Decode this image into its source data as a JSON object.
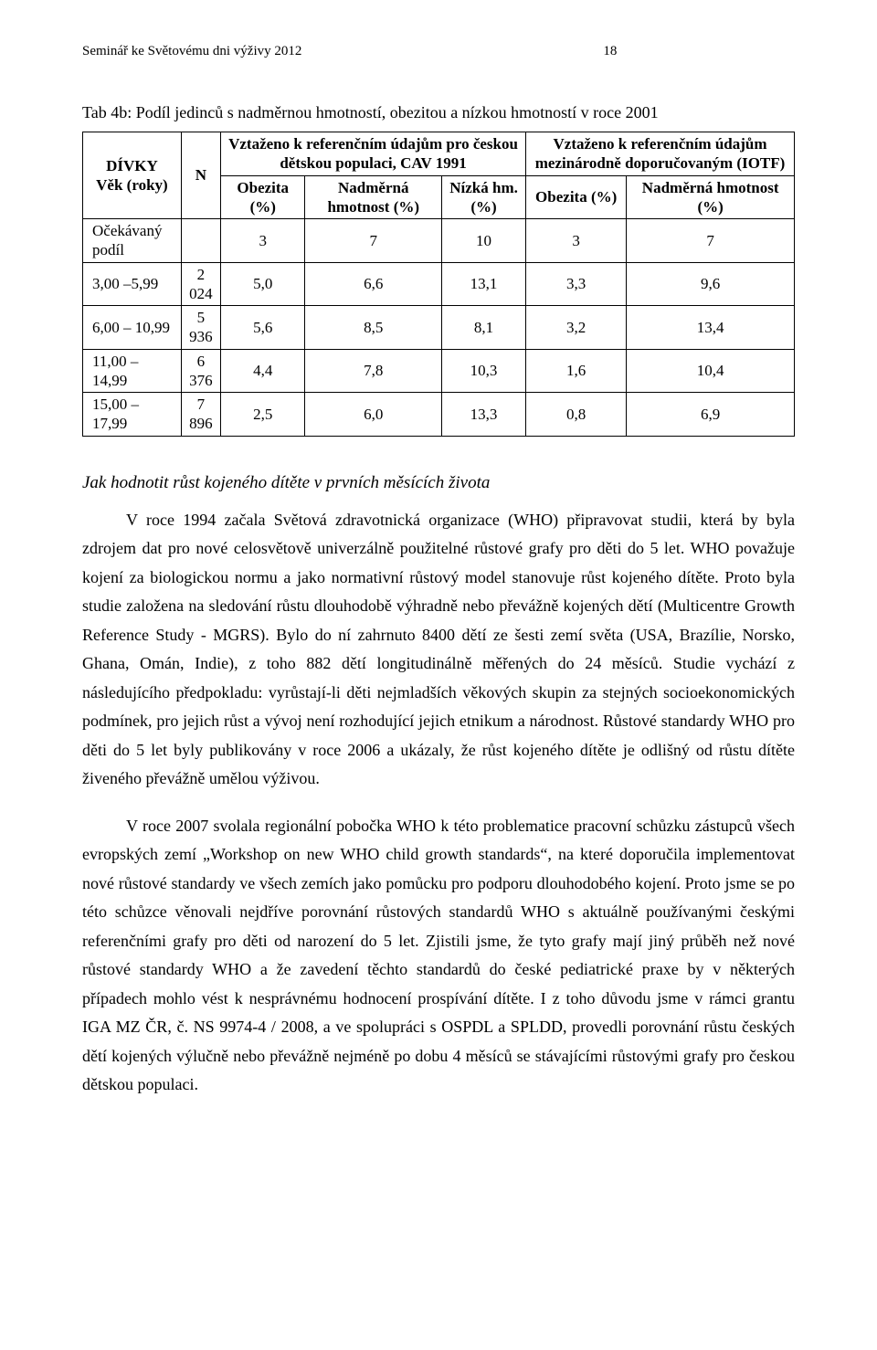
{
  "header": {
    "running_title": "Seminář ke Světovému dni výživy 2012",
    "page_number": "18"
  },
  "table": {
    "caption": "Tab 4b: Podíl jedinců s nadměrnou hmotností, obezitou a nízkou hmotností v roce 2001",
    "col0_label1": "DÍVKY",
    "col0_label2": "Věk (roky)",
    "col1_label": "N",
    "groupA_label": "Vztaženo k referenčním údajům pro českou dětskou populaci, CAV 1991",
    "groupB_label": "Vztaženo k referenčním údajům mezinárodně doporučovaným (IOTF)",
    "sub_obesity": "Obezita (%)",
    "sub_over": "Nadměrná hmotnost (%)",
    "sub_low": "Nízká hm. (%)",
    "rows": [
      {
        "label": "Očekávaný podíl",
        "n": "",
        "a1": "3",
        "a2": "7",
        "a3": "10",
        "b1": "3",
        "b2": "7"
      },
      {
        "label": "3,00 –5,99",
        "n": "2 024",
        "a1": "5,0",
        "a2": "6,6",
        "a3": "13,1",
        "b1": "3,3",
        "b2": "9,6"
      },
      {
        "label": "6,00 – 10,99",
        "n": "5 936",
        "a1": "5,6",
        "a2": "8,5",
        "a3": "8,1",
        "b1": "3,2",
        "b2": "13,4"
      },
      {
        "label": "11,00 – 14,99",
        "n": "6 376",
        "a1": "4,4",
        "a2": "7,8",
        "a3": "10,3",
        "b1": "1,6",
        "b2": "10,4"
      },
      {
        "label": "15,00 – 17,99",
        "n": "7 896",
        "a1": "2,5",
        "a2": "6,0",
        "a3": "13,3",
        "b1": "0,8",
        "b2": "6,9"
      }
    ]
  },
  "section": {
    "title": "Jak hodnotit růst kojeného dítěte v prvních měsících života",
    "para1": "V roce 1994 začala Světová zdravotnická organizace (WHO) připravovat studii, která by byla zdrojem dat pro nové celosvětově univerzálně použitelné růstové grafy pro děti do 5 let. WHO považuje kojení za biologickou normu a jako normativní růstový model stanovuje růst kojeného dítěte. Proto byla studie založena na sledování růstu dlouhodobě výhradně nebo převážně kojených dětí (Multicentre Growth Reference Study - MGRS). Bylo do ní zahrnuto 8400 dětí ze šesti zemí světa (USA, Brazílie, Norsko, Ghana, Omán, Indie), z toho 882 dětí longitudinálně měřených do 24 měsíců. Studie vychází z následujícího předpokladu: vyrůstají-li děti nejmladších věkových skupin za stejných socioekonomických podmínek, pro jejich růst a vývoj není rozhodující jejich etnikum a národnost. Růstové standardy WHO pro děti do 5 let byly publikovány v roce 2006 a ukázaly, že růst kojeného dítěte je odlišný od růstu dítěte živeného převážně umělou výživou.",
    "para2": "V roce 2007 svolala regionální pobočka WHO k této problematice pracovní schůzku zástupců všech evropských zemí „Workshop on new WHO child growth standards“, na které doporučila implementovat nové růstové standardy ve všech zemích jako pomůcku pro podporu dlouhodobého kojení. Proto jsme se po této schůzce věnovali nejdříve porovnání růstových standardů WHO s aktuálně používanými českými referenčními grafy pro děti od narození do 5 let. Zjistili jsme, že tyto grafy mají jiný průběh než nové růstové standardy WHO a že zavedení  těchto standardů do české pediatrické praxe by v některých případech mohlo vést k nesprávnému hodnocení prospívání dítěte.  I z toho důvodu jsme v rámci grantu IGA MZ ČR, č. NS 9974-4 / 2008, a ve spolupráci s OSPDL a SPLDD, provedli porovnání růstu českých dětí kojených výlučně nebo převážně nejméně po dobu 4 měsíců se stávajícími růstovými grafy pro českou dětskou populaci."
  }
}
